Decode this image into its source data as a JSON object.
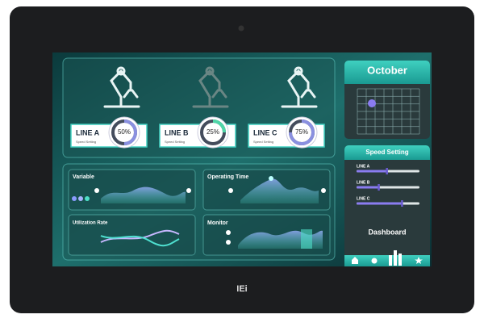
{
  "device": {
    "logo": "IEi"
  },
  "calendar": {
    "month": "October"
  },
  "lines": [
    {
      "name": "LINE A",
      "percent": 50,
      "percent_label": "50%",
      "caption": "Speed Setting"
    },
    {
      "name": "LINE B",
      "percent": 25,
      "percent_label": "25%",
      "caption": "Speed Setting"
    },
    {
      "name": "LINE C",
      "percent": 75,
      "percent_label": "75%",
      "caption": "Speed Setting"
    }
  ],
  "widgets": [
    {
      "title": "Variable"
    },
    {
      "title": "Operating Time"
    },
    {
      "title": "Utilization Rate"
    },
    {
      "title": "Monitor"
    }
  ],
  "speed_setting": {
    "title": "Speed Setting",
    "sliders": [
      {
        "name": "LINE A",
        "value": 48
      },
      {
        "name": "LINE B",
        "value": 35
      },
      {
        "name": "LINE C",
        "value": 72
      }
    ]
  },
  "dashboard": {
    "title": "Dashboard"
  }
}
